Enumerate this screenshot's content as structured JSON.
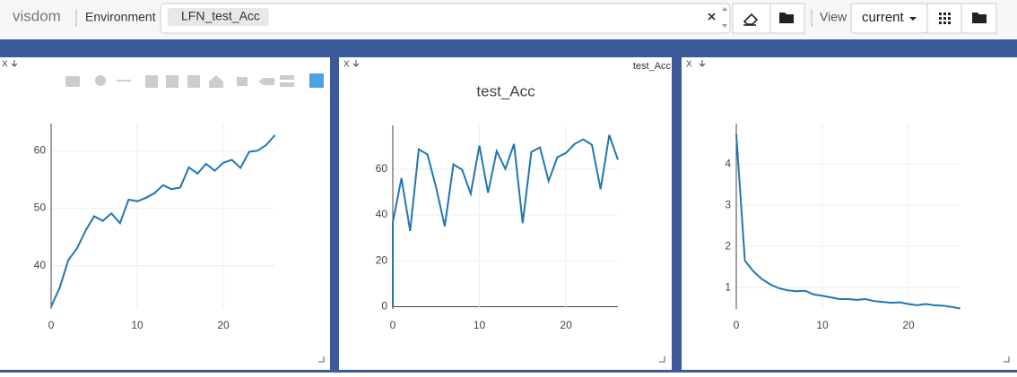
{
  "toolbar": {
    "brand": "visdom",
    "env_label": "Environment",
    "env": "LFN_test_Acc",
    "view_label": "View",
    "view": "current"
  },
  "pane_close": "X",
  "chart_data": [
    {
      "type": "line",
      "x": [
        0,
        1,
        2,
        3,
        4,
        5,
        6,
        7,
        8,
        9,
        10,
        11,
        12,
        13,
        14,
        15,
        16,
        17,
        18,
        19,
        20,
        21,
        22,
        23,
        24,
        25,
        26
      ],
      "series": [
        {
          "color": "#1f77b4",
          "values": [
            32.9,
            36.2,
            41.0,
            43.0,
            46.1,
            48.6,
            47.8,
            49.1,
            47.4,
            51.5,
            51.2,
            51.8,
            52.6,
            54.0,
            53.3,
            53.6,
            57.1,
            56.0,
            57.7,
            56.5,
            57.9,
            58.4,
            57.0,
            59.8,
            60.0,
            61.0,
            62.7
          ]
        }
      ],
      "xlim": [
        0,
        26
      ],
      "xticks": [
        0,
        10,
        20
      ],
      "ylim": [
        32.5,
        64.7
      ],
      "yticks": [
        40,
        50,
        60
      ],
      "grid": true
    },
    {
      "type": "line",
      "title": "test_Acc",
      "x": [
        0,
        0,
        1,
        2,
        3,
        4,
        5,
        6,
        7,
        8,
        9,
        10,
        11,
        12,
        13,
        14,
        15,
        16,
        17,
        18,
        19,
        20,
        21,
        22,
        23,
        24,
        25,
        26
      ],
      "series": [
        {
          "name": "test_Acc",
          "color": "#1f77b4",
          "values": [
            0,
            36.8,
            56,
            33,
            68.6,
            66.3,
            52,
            35,
            62,
            59.7,
            49.2,
            70.2,
            49.6,
            67.8,
            60,
            70.9,
            36.4,
            67.4,
            69.4,
            54.7,
            65.1,
            67,
            70.9,
            72.9,
            70.5,
            51.2,
            74.8,
            64
          ]
        }
      ],
      "xlim": [
        0,
        26
      ],
      "xticks": [
        0,
        10,
        20
      ],
      "ylim": [
        -1,
        79
      ],
      "yticks": [
        0,
        20,
        40,
        60
      ],
      "grid": true
    },
    {
      "type": "line",
      "x": [
        0,
        1,
        2,
        3,
        4,
        5,
        6,
        7,
        8,
        9,
        10,
        11,
        12,
        13,
        14,
        15,
        16,
        17,
        18,
        19,
        20,
        21,
        22,
        23,
        24,
        25,
        26
      ],
      "series": [
        {
          "color": "#1f77b4",
          "values": [
            4.72,
            1.65,
            1.39,
            1.2,
            1.07,
            0.98,
            0.93,
            0.91,
            0.92,
            0.83,
            0.8,
            0.76,
            0.72,
            0.72,
            0.7,
            0.72,
            0.67,
            0.65,
            0.63,
            0.64,
            0.6,
            0.57,
            0.6,
            0.57,
            0.56,
            0.53,
            0.49
          ]
        }
      ],
      "xlim": [
        0,
        26
      ],
      "xticks": [
        0,
        10,
        20
      ],
      "ylim": [
        0.48,
        4.98
      ],
      "yticks": [
        1,
        2,
        3,
        4
      ],
      "grid": true
    }
  ]
}
